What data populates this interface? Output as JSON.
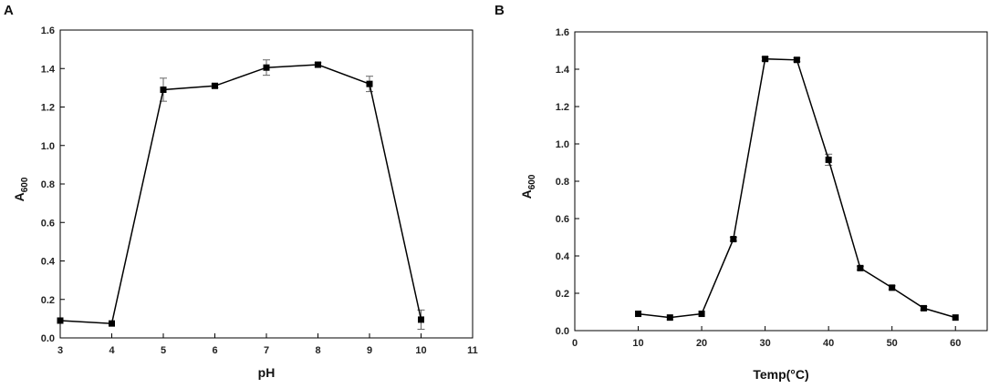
{
  "chart_data": [
    {
      "panel_label": "A",
      "type": "line",
      "xlabel": "pH",
      "ylabel": {
        "main": "A",
        "sub": "600"
      },
      "xlim": [
        3,
        11
      ],
      "ylim": [
        0,
        1.6
      ],
      "xticks": [
        "3",
        "4",
        "5",
        "6",
        "7",
        "8",
        "9",
        "10",
        "11"
      ],
      "yticks": [
        "0.0",
        "0.2",
        "0.4",
        "0.6",
        "0.8",
        "1.0",
        "1.2",
        "1.4",
        "1.6"
      ],
      "grid": false,
      "series": [
        {
          "x": [
            3,
            4,
            5,
            6,
            7,
            8,
            9,
            10
          ],
          "y": [
            0.09,
            0.075,
            1.29,
            1.31,
            1.405,
            1.42,
            1.32,
            0.095
          ],
          "err": [
            0.0,
            0.0,
            0.06,
            0.01,
            0.04,
            0.01,
            0.04,
            0.05
          ]
        }
      ]
    },
    {
      "panel_label": "B",
      "type": "line",
      "xlabel": "Temp(°C)",
      "ylabel": {
        "main": "A",
        "sub": "600"
      },
      "xlim": [
        0,
        65
      ],
      "ylim": [
        0,
        1.6
      ],
      "xticks": [
        "0",
        "10",
        "20",
        "30",
        "40",
        "50",
        "60"
      ],
      "yticks": [
        "0.0",
        "0.2",
        "0.4",
        "0.6",
        "0.8",
        "1.0",
        "1.2",
        "1.4",
        "1.6"
      ],
      "grid": false,
      "series": [
        {
          "x": [
            10,
            15,
            20,
            25,
            30,
            35,
            40,
            45,
            50,
            55,
            60
          ],
          "y": [
            0.09,
            0.07,
            0.09,
            0.49,
            1.455,
            1.45,
            0.915,
            0.335,
            0.23,
            0.12,
            0.07
          ],
          "err": [
            0.0,
            0.0,
            0.0,
            0.01,
            0.01,
            0.01,
            0.03,
            0.01,
            0.01,
            0.01,
            0.0
          ]
        }
      ]
    }
  ]
}
